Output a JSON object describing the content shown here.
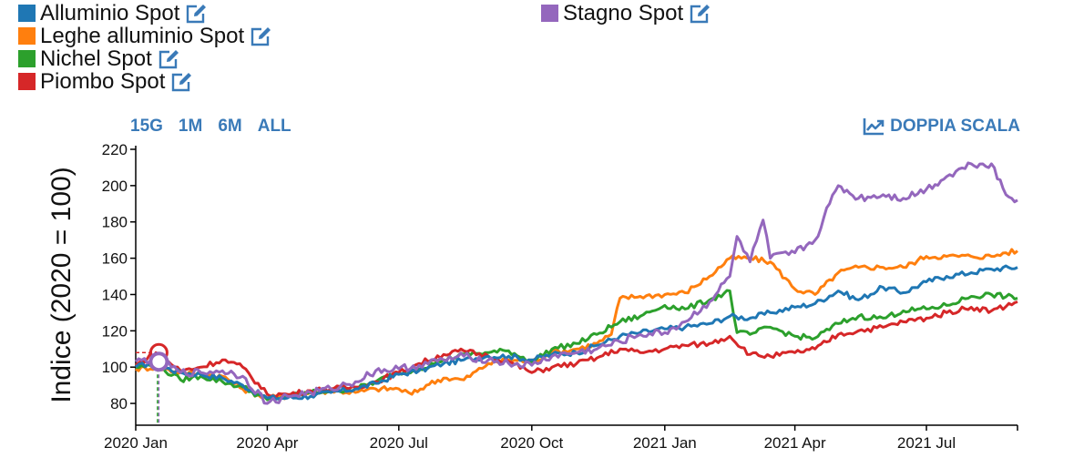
{
  "legend": {
    "items": [
      {
        "name": "Alluminio Spot",
        "color": "#1f77b4"
      },
      {
        "name": "Leghe alluminio Spot",
        "color": "#ff7f0e"
      },
      {
        "name": "Nichel Spot",
        "color": "#2ca02c"
      },
      {
        "name": "Piombo Spot",
        "color": "#d62728"
      },
      {
        "name": "Stagno Spot",
        "color": "#9467bd"
      }
    ]
  },
  "controls": {
    "ranges": [
      "15G",
      "1M",
      "6M",
      "ALL"
    ],
    "dual_scale_label": "DOPPIA SCALA",
    "accent": "#3a7ab8"
  },
  "chart_data": {
    "type": "line",
    "ylabel": "Indice (2020 = 100)",
    "xlabel": "",
    "ylim": [
      68,
      222
    ],
    "yticks": [
      80,
      100,
      120,
      140,
      160,
      180,
      200,
      220
    ],
    "xlim": [
      "2020-01-01",
      "2021-09-02"
    ],
    "xticks": [
      {
        "date": "2020-01-01",
        "label": "2020 Jan"
      },
      {
        "date": "2020-04-01",
        "label": "2020 Apr"
      },
      {
        "date": "2020-07-01",
        "label": "2020 Jul"
      },
      {
        "date": "2020-10-01",
        "label": "2020 Oct"
      },
      {
        "date": "2021-01-01",
        "label": "2021 Jan"
      },
      {
        "date": "2021-04-01",
        "label": "2021 Apr"
      },
      {
        "date": "2021-07-01",
        "label": "2021 Jul"
      }
    ],
    "grid": false,
    "cursor": {
      "date": "2020-01-17",
      "value": 103
    },
    "series": [
      {
        "name": "Alluminio Spot",
        "color": "#1f77b4",
        "points": [
          [
            "2020-01-01",
            100
          ],
          [
            "2020-01-10",
            102
          ],
          [
            "2020-01-20",
            100
          ],
          [
            "2020-02-01",
            97
          ],
          [
            "2020-02-15",
            96
          ],
          [
            "2020-03-01",
            94
          ],
          [
            "2020-03-15",
            90
          ],
          [
            "2020-04-01",
            83
          ],
          [
            "2020-04-15",
            83
          ],
          [
            "2020-05-01",
            84
          ],
          [
            "2020-05-15",
            86
          ],
          [
            "2020-06-01",
            88
          ],
          [
            "2020-06-15",
            91
          ],
          [
            "2020-07-01",
            96
          ],
          [
            "2020-07-15",
            98
          ],
          [
            "2020-08-01",
            102
          ],
          [
            "2020-08-15",
            104
          ],
          [
            "2020-09-01",
            106
          ],
          [
            "2020-09-15",
            106
          ],
          [
            "2020-10-01",
            104
          ],
          [
            "2020-10-15",
            107
          ],
          [
            "2020-11-01",
            108
          ],
          [
            "2020-11-15",
            112
          ],
          [
            "2020-12-01",
            117
          ],
          [
            "2020-12-15",
            119
          ],
          [
            "2021-01-01",
            121
          ],
          [
            "2021-01-15",
            122
          ],
          [
            "2021-02-01",
            124
          ],
          [
            "2021-02-15",
            128
          ],
          [
            "2021-03-01",
            127
          ],
          [
            "2021-03-15",
            130
          ],
          [
            "2021-04-01",
            133
          ],
          [
            "2021-04-15",
            135
          ],
          [
            "2021-05-01",
            142
          ],
          [
            "2021-05-15",
            137
          ],
          [
            "2021-06-01",
            144
          ],
          [
            "2021-06-15",
            141
          ],
          [
            "2021-07-01",
            147
          ],
          [
            "2021-07-15",
            150
          ],
          [
            "2021-08-01",
            152
          ],
          [
            "2021-08-15",
            154
          ],
          [
            "2021-09-02",
            155
          ]
        ]
      },
      {
        "name": "Leghe alluminio Spot",
        "color": "#ff7f0e",
        "points": [
          [
            "2020-01-01",
            99
          ],
          [
            "2020-01-15",
            100
          ],
          [
            "2020-02-01",
            97
          ],
          [
            "2020-02-15",
            96
          ],
          [
            "2020-03-01",
            95
          ],
          [
            "2020-03-15",
            88
          ],
          [
            "2020-04-01",
            83
          ],
          [
            "2020-04-15",
            84
          ],
          [
            "2020-05-01",
            86
          ],
          [
            "2020-05-15",
            87
          ],
          [
            "2020-06-01",
            86
          ],
          [
            "2020-06-15",
            88
          ],
          [
            "2020-07-01",
            88
          ],
          [
            "2020-07-10",
            85
          ],
          [
            "2020-07-20",
            90
          ],
          [
            "2020-08-01",
            94
          ],
          [
            "2020-08-15",
            93
          ],
          [
            "2020-09-01",
            102
          ],
          [
            "2020-09-15",
            104
          ],
          [
            "2020-10-01",
            103
          ],
          [
            "2020-10-15",
            108
          ],
          [
            "2020-11-01",
            110
          ],
          [
            "2020-11-15",
            113
          ],
          [
            "2020-11-25",
            118
          ],
          [
            "2020-12-01",
            138
          ],
          [
            "2020-12-15",
            139
          ],
          [
            "2021-01-01",
            140
          ],
          [
            "2021-01-15",
            141
          ],
          [
            "2021-02-01",
            150
          ],
          [
            "2021-02-15",
            160
          ],
          [
            "2021-03-01",
            160
          ],
          [
            "2021-03-15",
            158
          ],
          [
            "2021-04-01",
            143
          ],
          [
            "2021-04-15",
            140
          ],
          [
            "2021-05-01",
            152
          ],
          [
            "2021-05-15",
            155
          ],
          [
            "2021-06-01",
            155
          ],
          [
            "2021-06-15",
            155
          ],
          [
            "2021-07-01",
            161
          ],
          [
            "2021-07-15",
            161
          ],
          [
            "2021-08-01",
            161
          ],
          [
            "2021-08-15",
            161
          ],
          [
            "2021-08-25",
            163
          ],
          [
            "2021-09-02",
            164
          ]
        ]
      },
      {
        "name": "Nichel Spot",
        "color": "#2ca02c",
        "points": [
          [
            "2020-01-01",
            100
          ],
          [
            "2020-01-15",
            101
          ],
          [
            "2020-02-01",
            93
          ],
          [
            "2020-02-15",
            95
          ],
          [
            "2020-03-01",
            92
          ],
          [
            "2020-03-15",
            89
          ],
          [
            "2020-04-01",
            82
          ],
          [
            "2020-04-15",
            84
          ],
          [
            "2020-05-01",
            86
          ],
          [
            "2020-05-15",
            87
          ],
          [
            "2020-06-01",
            88
          ],
          [
            "2020-06-15",
            92
          ],
          [
            "2020-07-01",
            97
          ],
          [
            "2020-07-15",
            99
          ],
          [
            "2020-08-01",
            104
          ],
          [
            "2020-08-15",
            107
          ],
          [
            "2020-09-01",
            108
          ],
          [
            "2020-09-15",
            109
          ],
          [
            "2020-10-01",
            103
          ],
          [
            "2020-10-15",
            110
          ],
          [
            "2020-11-01",
            113
          ],
          [
            "2020-11-15",
            118
          ],
          [
            "2020-12-01",
            125
          ],
          [
            "2020-12-15",
            128
          ],
          [
            "2021-01-01",
            134
          ],
          [
            "2021-01-15",
            132
          ],
          [
            "2021-02-01",
            137
          ],
          [
            "2021-02-15",
            142
          ],
          [
            "2021-02-20",
            119
          ],
          [
            "2021-03-01",
            118
          ],
          [
            "2021-03-15",
            122
          ],
          [
            "2021-04-01",
            117
          ],
          [
            "2021-04-15",
            116
          ],
          [
            "2021-05-01",
            124
          ],
          [
            "2021-05-15",
            128
          ],
          [
            "2021-06-01",
            127
          ],
          [
            "2021-06-15",
            131
          ],
          [
            "2021-07-01",
            132
          ],
          [
            "2021-07-15",
            134
          ],
          [
            "2021-08-01",
            139
          ],
          [
            "2021-08-15",
            140
          ],
          [
            "2021-09-02",
            138
          ]
        ]
      },
      {
        "name": "Piombo Spot",
        "color": "#d62728",
        "points": [
          [
            "2020-01-01",
            101
          ],
          [
            "2020-01-15",
            108
          ],
          [
            "2020-02-01",
            98
          ],
          [
            "2020-02-15",
            100
          ],
          [
            "2020-03-01",
            104
          ],
          [
            "2020-03-15",
            100
          ],
          [
            "2020-04-01",
            85
          ],
          [
            "2020-04-15",
            85
          ],
          [
            "2020-05-01",
            87
          ],
          [
            "2020-05-15",
            88
          ],
          [
            "2020-06-01",
            89
          ],
          [
            "2020-06-15",
            92
          ],
          [
            "2020-07-01",
            97
          ],
          [
            "2020-07-15",
            102
          ],
          [
            "2020-08-01",
            107
          ],
          [
            "2020-08-15",
            109
          ],
          [
            "2020-09-01",
            106
          ],
          [
            "2020-09-15",
            103
          ],
          [
            "2020-10-01",
            97
          ],
          [
            "2020-10-15",
            100
          ],
          [
            "2020-11-01",
            102
          ],
          [
            "2020-11-15",
            105
          ],
          [
            "2020-12-01",
            110
          ],
          [
            "2020-12-15",
            108
          ],
          [
            "2021-01-01",
            110
          ],
          [
            "2021-01-15",
            112
          ],
          [
            "2021-02-01",
            113
          ],
          [
            "2021-02-15",
            117
          ],
          [
            "2021-03-01",
            107
          ],
          [
            "2021-03-15",
            106
          ],
          [
            "2021-04-01",
            108
          ],
          [
            "2021-04-15",
            110
          ],
          [
            "2021-05-01",
            118
          ],
          [
            "2021-05-15",
            120
          ],
          [
            "2021-06-01",
            122
          ],
          [
            "2021-06-15",
            125
          ],
          [
            "2021-07-01",
            127
          ],
          [
            "2021-07-15",
            130
          ],
          [
            "2021-08-01",
            133
          ],
          [
            "2021-08-15",
            131
          ],
          [
            "2021-09-02",
            136
          ]
        ]
      },
      {
        "name": "Stagno Spot",
        "color": "#9467bd",
        "points": [
          [
            "2020-01-01",
            103
          ],
          [
            "2020-01-15",
            105
          ],
          [
            "2020-02-01",
            97
          ],
          [
            "2020-02-15",
            97
          ],
          [
            "2020-03-01",
            98
          ],
          [
            "2020-03-15",
            95
          ],
          [
            "2020-04-01",
            80
          ],
          [
            "2020-04-15",
            84
          ],
          [
            "2020-05-01",
            86
          ],
          [
            "2020-05-15",
            88
          ],
          [
            "2020-06-01",
            92
          ],
          [
            "2020-06-15",
            98
          ],
          [
            "2020-07-01",
            99
          ],
          [
            "2020-07-15",
            101
          ],
          [
            "2020-08-01",
            104
          ],
          [
            "2020-08-15",
            106
          ],
          [
            "2020-09-01",
            104
          ],
          [
            "2020-09-15",
            102
          ],
          [
            "2020-10-01",
            101
          ],
          [
            "2020-10-15",
            106
          ],
          [
            "2020-11-01",
            108
          ],
          [
            "2020-11-15",
            110
          ],
          [
            "2020-12-01",
            114
          ],
          [
            "2020-12-15",
            118
          ],
          [
            "2021-01-01",
            119
          ],
          [
            "2021-01-15",
            125
          ],
          [
            "2021-02-01",
            136
          ],
          [
            "2021-02-15",
            150
          ],
          [
            "2021-02-20",
            172
          ],
          [
            "2021-03-01",
            158
          ],
          [
            "2021-03-10",
            181
          ],
          [
            "2021-03-15",
            160
          ],
          [
            "2021-04-01",
            163
          ],
          [
            "2021-04-15",
            170
          ],
          [
            "2021-04-25",
            190
          ],
          [
            "2021-05-01",
            200
          ],
          [
            "2021-05-15",
            193
          ],
          [
            "2021-06-01",
            195
          ],
          [
            "2021-06-15",
            193
          ],
          [
            "2021-07-01",
            198
          ],
          [
            "2021-07-15",
            205
          ],
          [
            "2021-08-01",
            212
          ],
          [
            "2021-08-15",
            212
          ],
          [
            "2021-08-25",
            195
          ],
          [
            "2021-09-02",
            192
          ]
        ]
      }
    ]
  }
}
